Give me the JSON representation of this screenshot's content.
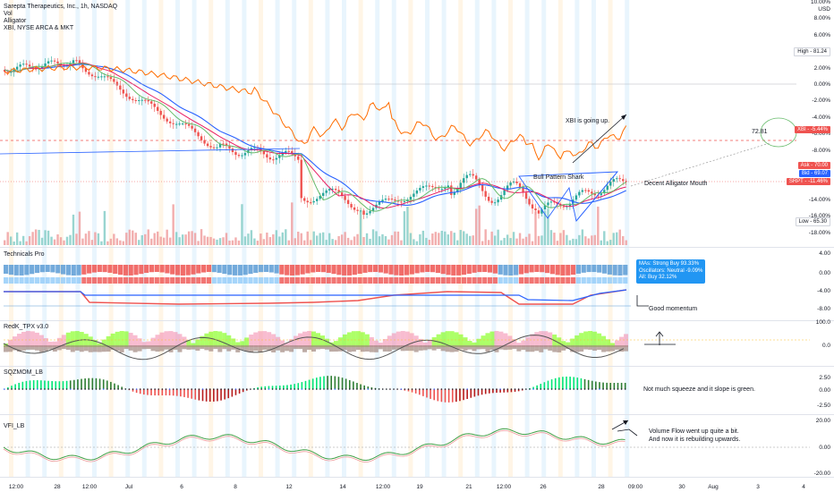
{
  "header": {
    "symbol": "Sarepta Therapeutics, Inc., 1h, NASDAQ",
    "indicators": [
      "Vol",
      "Alligator",
      "XBI, NYSE ARCA & MKT"
    ]
  },
  "main_axis": {
    "unit": "USD",
    "ticks": [
      "10.00%",
      "8.00%",
      "6.00%",
      "4.00%",
      "2.00%",
      "0.00%",
      "-2.00%",
      "-4.00%",
      "-6.00%",
      "-8.00%",
      "-10.00%",
      "-12.00%",
      "-14.00%",
      "-16.00%",
      "-18.00%"
    ],
    "high_label": "High",
    "high_value": "81.24",
    "low_label": "Low",
    "low_value": "65.30",
    "xbi_tag": "XBI",
    "xbi_value": "-5.44%",
    "ask_label": "Ask",
    "ask_value": "70.00",
    "bid_label": "Bid",
    "bid_value": "69.07",
    "srpt_tag": "SRPT",
    "srpt_value": "-11.46%"
  },
  "annotations": {
    "xbi_up": "XBI is going up.",
    "price_target": "72.81",
    "bull_pattern": "Bull Pattern Shark",
    "alligator_mouth": "Decent Alligator Mouth",
    "good_momentum": "Good momentum",
    "squeeze_note": "Not much squeeze and it slope is green.",
    "volume_flow_line1": "Volume Flow went up quite a bit.",
    "volume_flow_line2": "And now it is rebuilding upwards."
  },
  "technicals": {
    "title": "Technicals Pro",
    "ticks": [
      "4.00",
      "0.00",
      "-4.00",
      "-8.00"
    ],
    "legend": [
      "MAs: Strong Buy 93.33%",
      "Oscillators: Neutral -9.09%",
      "All: Buy 32.12%"
    ]
  },
  "redk": {
    "title": "RedK_TPX v3.0",
    "ticks": [
      "100.0",
      "0.0"
    ]
  },
  "sqzmom": {
    "title": "SQZMOM_LB",
    "ticks": [
      "2.50",
      "0.00",
      "-2.50"
    ]
  },
  "vfi": {
    "title": "VFI_LB",
    "ticks": [
      "20.00",
      "0.00",
      "-20.00"
    ]
  },
  "time_axis": [
    "12:00",
    "28",
    "12:00",
    "Jul",
    "6",
    "8",
    "12",
    "14",
    "12:00",
    "19",
    "21",
    "12:00",
    "26",
    "28",
    "09:00",
    "30",
    "Aug",
    "3",
    "4"
  ],
  "colors": {
    "up": "#26a69a",
    "down": "#ef5350",
    "xbi_line": "#ff6d00",
    "jaw": "#2962ff",
    "teeth": "#e91e63",
    "lips": "#66bb6a"
  }
}
